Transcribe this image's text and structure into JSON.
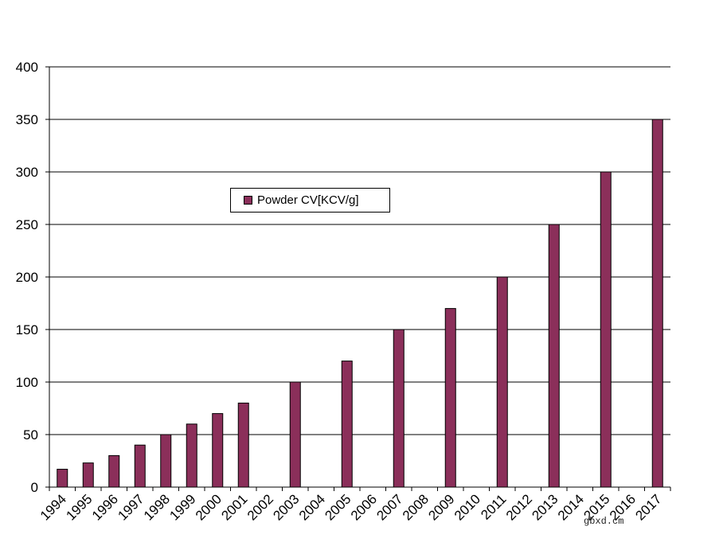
{
  "chart_data": {
    "type": "bar",
    "title": "",
    "xlabel": "",
    "ylabel": "",
    "ylim": [
      0,
      400
    ],
    "yticks": [
      0,
      50,
      100,
      150,
      200,
      250,
      300,
      350,
      400
    ],
    "categories": [
      "1994",
      "1995",
      "1996",
      "1997",
      "1998",
      "1999",
      "2000",
      "2001",
      "2002",
      "2003",
      "2004",
      "2005",
      "2006",
      "2007",
      "2008",
      "2009",
      "2010",
      "2011",
      "2012",
      "2013",
      "2014",
      "2015",
      "2016",
      "2017"
    ],
    "series": [
      {
        "name": "Powder CV[KCV/g]",
        "color": "#8b2f5a",
        "values": [
          17,
          23,
          30,
          40,
          50,
          60,
          70,
          80,
          null,
          100,
          null,
          120,
          null,
          150,
          null,
          170,
          null,
          200,
          null,
          250,
          null,
          300,
          null,
          350
        ]
      }
    ],
    "grid": true,
    "legend_position": "upper-left-center"
  },
  "legend": {
    "label": "Powder CV[KCV/g]"
  },
  "watermark": "gbxd.cm"
}
